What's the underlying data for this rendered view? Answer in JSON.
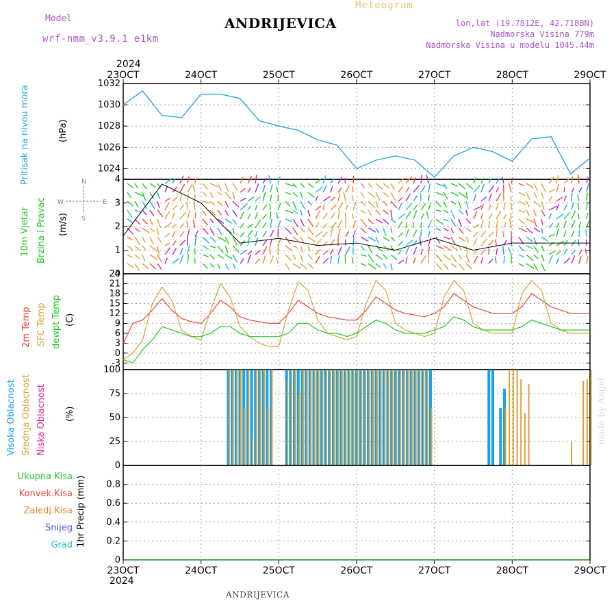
{
  "header": {
    "meteogram_label": "Meteogram",
    "station_title": "ANDRIJEVICA",
    "model_label": "Model",
    "model_value": "wrf-nmm_v3.9.1  e1km",
    "lonlat": "lon,lat (19.7812E, 42.7188N)",
    "elevation": "Nadmorska Visina 779m",
    "model_elevation": "Nadmorska Visina u modelu 1045.44m"
  },
  "footer": {
    "station": "ANDRIJEVICA",
    "signature": "made by Angel"
  },
  "colors": {
    "pressure": "#29a3e0",
    "temp2m": "#e8443a",
    "sfc_temp": "#daa236",
    "dewpoint": "#1ec81e",
    "high_cloud": "#1aa0e8",
    "mid_cloud": "#daa236",
    "low_cloud": "#e0209a",
    "precip_total": "#1ec81e",
    "precip_conv": "#e8443a",
    "precip_strat": "#f07f2a",
    "snow": "#5050e0",
    "hail": "#20c0c0",
    "title_purple": "#a855c8"
  },
  "time_axis": {
    "year_top": "2024",
    "year_bottom": "2024",
    "labels": [
      "23OCT",
      "24OCT",
      "25OCT",
      "26OCT",
      "27OCT",
      "28OCT",
      "29OCT"
    ]
  },
  "wind_panel_legend": {
    "north": "N",
    "south": "S",
    "west": "W",
    "east": "E"
  },
  "panel_labels": {
    "pressure": [
      "Pritisak na nivou mora",
      "(hPa)"
    ],
    "wind": [
      "10m Vjetar",
      "Brzina i Pravac",
      "(m/s)"
    ],
    "temp": [
      "2m Temp",
      "SFC Temp",
      "dewpt Temp",
      "(C)"
    ],
    "cloud": [
      "Visoka Oblacnost",
      "Srednja Oblacnost",
      "Niska Oblacnost",
      "(%)"
    ],
    "precip": [
      "Ukupna Kisa",
      "Konvek.Kisa",
      "Zaledj.Kisa",
      "Snijeg",
      "Grad",
      "1hr Precip (mm)"
    ]
  },
  "chart_data": [
    {
      "type": "line",
      "ylabel": "Pritisak na nivou mora (hPa)",
      "ylim": [
        1023,
        1032
      ],
      "yticks": [
        1024,
        1026,
        1028,
        1030,
        1032
      ],
      "x": [
        0,
        0.25,
        0.5,
        0.75,
        1.0,
        1.25,
        1.5,
        1.75,
        2.0,
        2.25,
        2.5,
        2.75,
        3.0,
        3.25,
        3.5,
        3.75,
        4.0,
        4.25,
        4.5,
        4.75,
        5.0,
        5.25,
        5.5,
        5.75,
        6.0
      ],
      "series": [
        {
          "values": [
            1030.0,
            1031.3,
            1029.0,
            1028.8,
            1031.0,
            1031.0,
            1030.6,
            1028.5,
            1028.0,
            1027.6,
            1026.7,
            1026.2,
            1024.0,
            1024.8,
            1025.2,
            1024.8,
            1023.2,
            1025.2,
            1026.0,
            1025.6,
            1024.7,
            1026.8,
            1027.0,
            1023.5,
            1025.0
          ]
        }
      ]
    },
    {
      "type": "scatter",
      "ylabel": "10m Vjetar Brzina i Pravac (m/s)",
      "ylim": [
        0,
        4
      ],
      "yticks": [
        0,
        1,
        2,
        3,
        4
      ],
      "x": [
        0,
        0.5,
        1.0,
        1.5,
        2.0,
        2.5,
        3.0,
        3.5,
        4.0,
        4.5,
        5.0,
        5.5,
        6.0
      ],
      "series": [
        {
          "values": [
            1.6,
            3.8,
            3.0,
            1.3,
            1.5,
            1.2,
            1.3,
            1.0,
            1.5,
            1.0,
            1.3,
            1.3,
            1.3
          ]
        }
      ]
    },
    {
      "type": "line",
      "ylabel": "(C)",
      "ylim": [
        -5,
        24
      ],
      "yticks": [
        -3,
        0,
        3,
        6,
        9,
        12,
        15,
        18,
        21,
        24
      ],
      "x": [
        0,
        0.125,
        0.25,
        0.375,
        0.5,
        0.625,
        0.75,
        0.875,
        1.0,
        1.125,
        1.25,
        1.375,
        1.5,
        1.625,
        1.75,
        1.875,
        2.0,
        2.125,
        2.25,
        2.375,
        2.5,
        2.625,
        2.75,
        2.875,
        3.0,
        3.125,
        3.25,
        3.375,
        3.5,
        3.625,
        3.75,
        3.875,
        4.0,
        4.125,
        4.25,
        4.375,
        4.5,
        4.625,
        4.75,
        4.875,
        5.0,
        5.125,
        5.25,
        5.375,
        5.5,
        5.625,
        5.75,
        5.875,
        6.0
      ],
      "series": [
        {
          "name": "2m Temp",
          "values": [
            3,
            9,
            10,
            13,
            16.5,
            13,
            10.5,
            9.5,
            9,
            12,
            16,
            14,
            11,
            10,
            9.5,
            9,
            9,
            12,
            16,
            14,
            12,
            11,
            10.5,
            10,
            10,
            13,
            17,
            15,
            13,
            12,
            11.5,
            11,
            12,
            14,
            18,
            16,
            14,
            13,
            12,
            12,
            12,
            14,
            18,
            16,
            14,
            13,
            12,
            12,
            12
          ]
        },
        {
          "name": "SFC Temp",
          "values": [
            -2,
            0,
            4,
            15,
            20,
            16,
            7,
            5,
            4,
            13,
            21,
            17,
            8,
            5,
            3,
            2,
            2,
            13,
            21.5,
            19,
            10,
            6,
            5,
            4,
            5,
            15,
            22,
            19,
            9,
            7,
            6,
            5,
            6,
            17,
            22,
            19,
            9,
            7,
            6,
            6,
            6,
            18,
            22,
            19,
            9,
            7,
            6,
            6,
            6
          ]
        },
        {
          "name": "dewpt Temp",
          "values": [
            -2,
            -3,
            1,
            4,
            8,
            7,
            6,
            5,
            5,
            6,
            8,
            8,
            6,
            5,
            5,
            5,
            5,
            6,
            9,
            9,
            7,
            6,
            6,
            5,
            6,
            8,
            10,
            9,
            7,
            6,
            6,
            6,
            7,
            8,
            11,
            10,
            8,
            7,
            7,
            7,
            7,
            8,
            10,
            9,
            8,
            7,
            7,
            7,
            7
          ]
        }
      ]
    },
    {
      "type": "bar",
      "ylabel": "(%)",
      "ylim": [
        0,
        100
      ],
      "yticks": [
        0,
        25,
        50,
        75,
        100
      ],
      "x": [
        1.35,
        1.4,
        1.45,
        1.5,
        1.55,
        1.6,
        1.65,
        1.7,
        1.75,
        1.8,
        1.85,
        1.9,
        2.1,
        2.15,
        2.2,
        2.25,
        2.3,
        2.35,
        2.4,
        2.45,
        2.5,
        2.55,
        2.6,
        2.65,
        2.7,
        2.75,
        2.8,
        2.85,
        2.9,
        2.95,
        3.0,
        3.05,
        3.1,
        3.15,
        3.2,
        3.25,
        3.3,
        3.35,
        3.4,
        3.45,
        3.5,
        3.55,
        3.6,
        3.65,
        3.7,
        3.75,
        3.8,
        3.85,
        3.9,
        3.95,
        4.7,
        4.75,
        4.85,
        4.9,
        4.95,
        5.0,
        5.05,
        5.1,
        5.15,
        5.2,
        5.75,
        5.9,
        5.95,
        6.0
      ],
      "series": [
        {
          "name": "Visoka Oblacnost",
          "values": [
            100,
            100,
            100,
            100,
            100,
            100,
            100,
            100,
            100,
            100,
            100,
            100,
            100,
            100,
            100,
            100,
            100,
            100,
            100,
            100,
            100,
            100,
            100,
            100,
            100,
            100,
            100,
            100,
            100,
            100,
            100,
            100,
            100,
            100,
            100,
            100,
            100,
            100,
            100,
            100,
            100,
            100,
            100,
            100,
            100,
            100,
            100,
            100,
            100,
            100,
            100,
            100,
            60,
            80,
            0,
            0,
            0,
            0,
            0,
            0,
            0,
            0,
            0,
            0
          ]
        },
        {
          "name": "Srednja Oblacnost",
          "values": [
            100,
            100,
            100,
            100,
            60,
            100,
            30,
            100,
            100,
            100,
            60,
            100,
            90,
            100,
            100,
            75,
            100,
            100,
            100,
            100,
            100,
            100,
            100,
            100,
            100,
            100,
            100,
            100,
            100,
            100,
            100,
            100,
            100,
            100,
            100,
            100,
            100,
            100,
            100,
            100,
            100,
            100,
            100,
            100,
            100,
            100,
            100,
            100,
            100,
            60,
            0,
            0,
            0,
            60,
            100,
            100,
            100,
            90,
            55,
            85,
            25,
            88,
            90,
            100
          ]
        },
        {
          "name": "Niska Oblacnost",
          "values": [
            0,
            0,
            0,
            0,
            0,
            0,
            0,
            0,
            0,
            0,
            0,
            0,
            0,
            0,
            0,
            0,
            0,
            0,
            0,
            0,
            0,
            0,
            0,
            0,
            0,
            0,
            0,
            0,
            0,
            0,
            0,
            0,
            0,
            0,
            0,
            0,
            0,
            0,
            0,
            0,
            0,
            0,
            0,
            0,
            0,
            0,
            0,
            0,
            0,
            0,
            0,
            0,
            0,
            0,
            0,
            0,
            0,
            0,
            0,
            0,
            0,
            0,
            0,
            0
          ]
        }
      ]
    },
    {
      "type": "bar",
      "ylabel": "1hr Precip (mm)",
      "ylim": [
        0,
        1
      ],
      "yticks": [
        0,
        0.2,
        0.4,
        0.6,
        0.8
      ],
      "x": [
        0,
        6
      ],
      "series": [
        {
          "name": "Ukupna Kisa",
          "values": [
            0,
            0
          ]
        }
      ]
    }
  ]
}
